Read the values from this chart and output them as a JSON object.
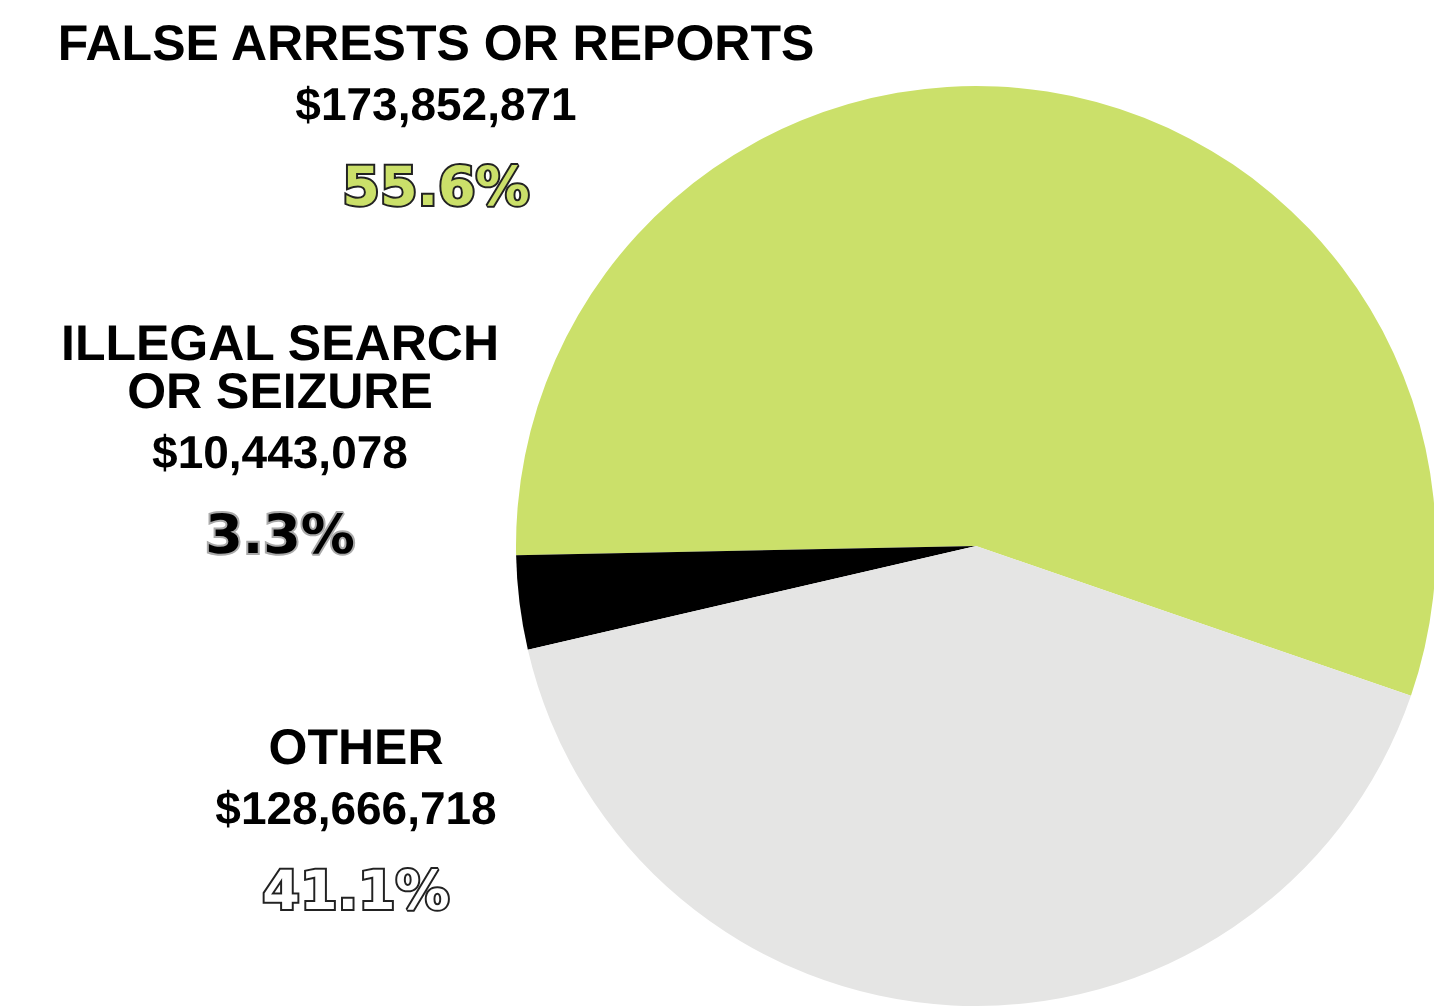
{
  "chart_data": {
    "type": "pie",
    "categories": [
      "FALSE ARRESTS OR REPORTS",
      "ILLEGAL SEARCH OR SEIZURE",
      "OTHER"
    ],
    "values": [
      55.6,
      3.3,
      41.1
    ],
    "value_labels": [
      "$173,852,871\n55.6%",
      "$10,443,078\n3.3%",
      "$128,666,718\n41.1%"
    ],
    "colors": [
      "#cbe06a",
      "#000000",
      "#e5e5e4"
    ],
    "legend": false
  }
}
